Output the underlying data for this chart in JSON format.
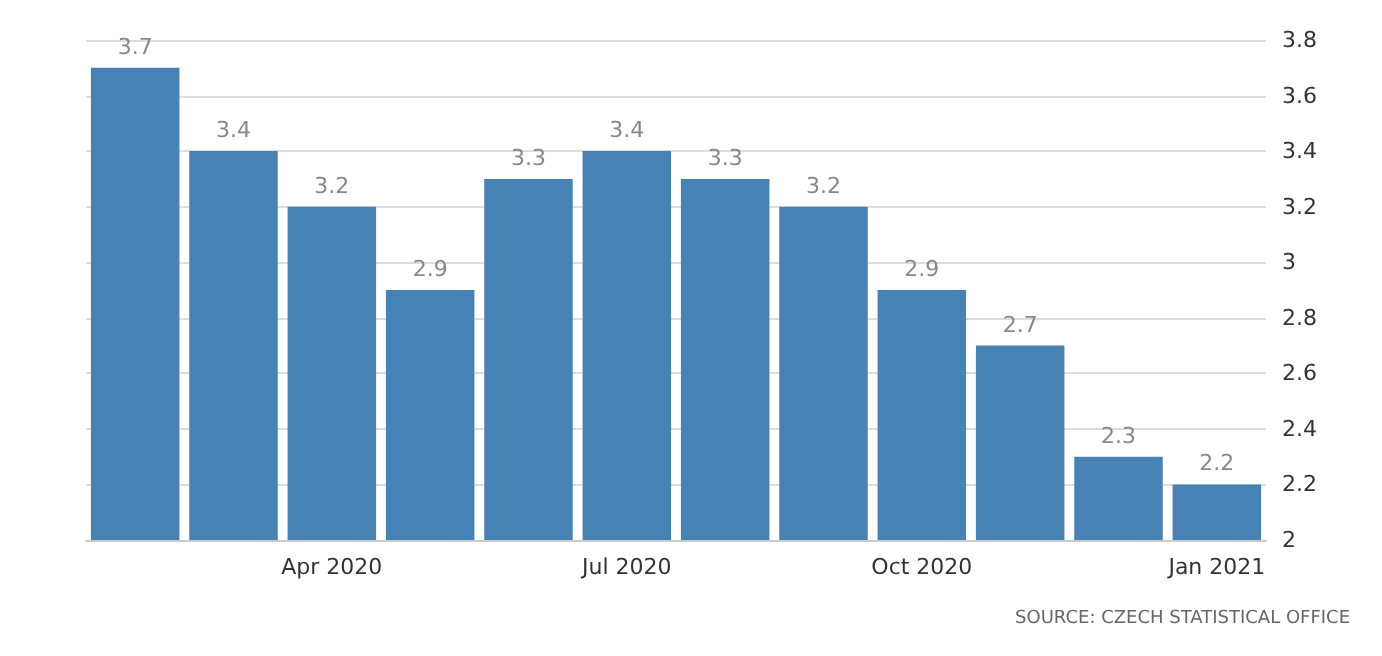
{
  "chart_data": {
    "type": "bar",
    "categories": [
      null,
      null,
      "Apr 2020",
      null,
      null,
      "Jul 2020",
      null,
      null,
      "Oct 2020",
      null,
      null,
      "Jan 2021"
    ],
    "values": [
      3.7,
      3.4,
      3.2,
      2.9,
      3.3,
      3.4,
      3.3,
      3.2,
      2.9,
      2.7,
      2.3,
      2.2
    ],
    "color": "#4682b4",
    "ylim": [
      2,
      3.8
    ],
    "yticks": [
      2,
      2.2,
      2.4,
      2.6,
      2.8,
      3,
      3.2,
      3.4,
      3.6,
      3.8
    ],
    "grid": "y",
    "data_labels": true,
    "annotations": [
      "SOURCE: CZECH STATISTICAL OFFICE"
    ]
  }
}
